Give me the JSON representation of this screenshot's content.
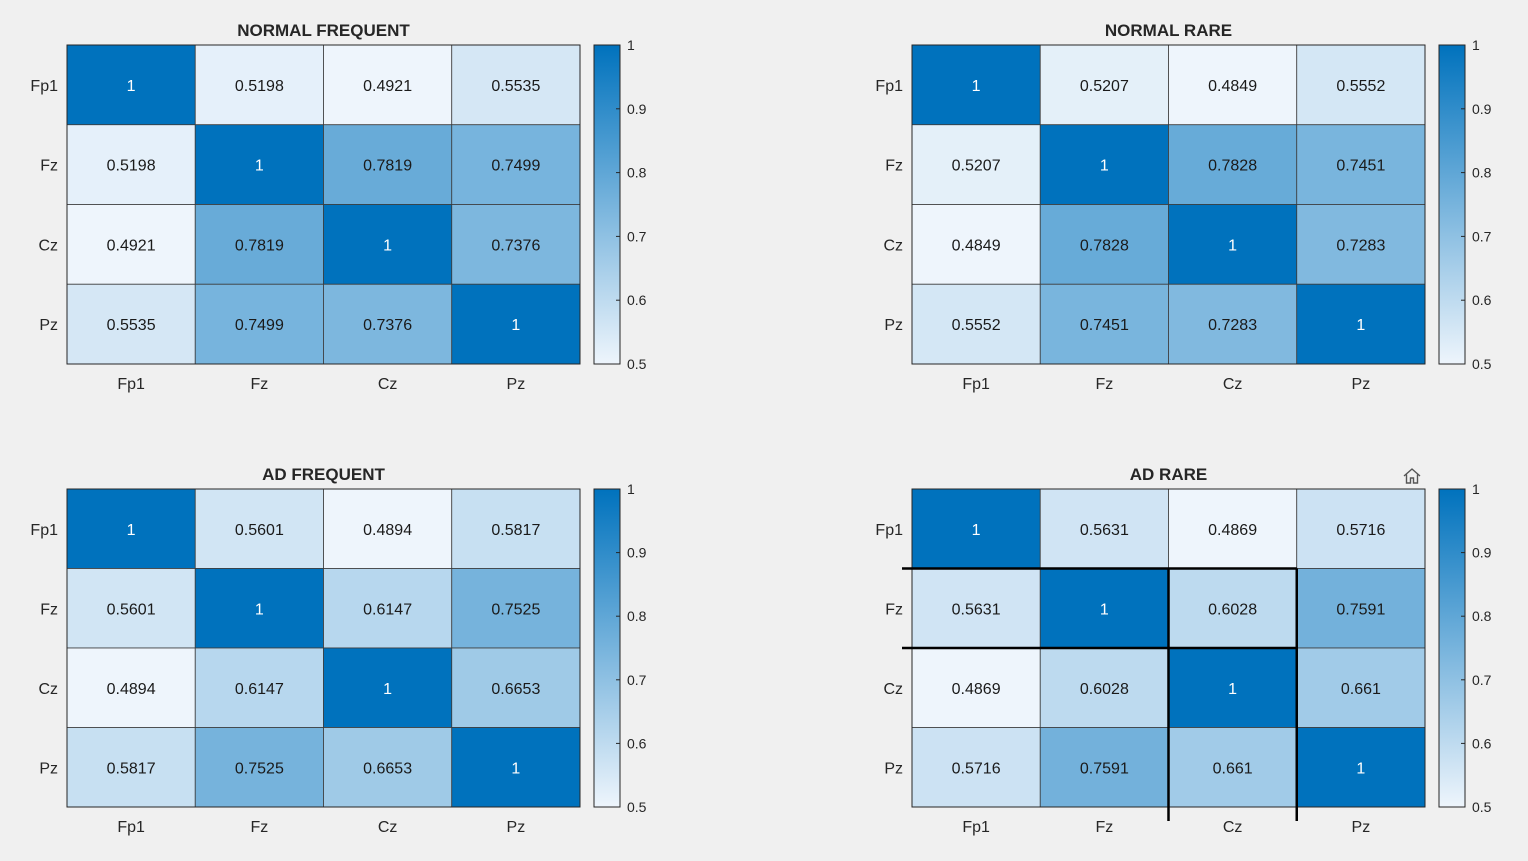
{
  "figure": {
    "background": "#f0f0f0",
    "colormap": {
      "low": "#eef5fc",
      "high": "#0072bd",
      "range": [
        0.5,
        1
      ]
    }
  },
  "toolbar": {
    "home_icon": "home-icon"
  },
  "chart_data": [
    {
      "type": "heatmap",
      "title": "NORMAL FREQUENT",
      "xlabels": [
        "Fp1",
        "Fz",
        "Cz",
        "Pz"
      ],
      "ylabels": [
        "Fp1",
        "Fz",
        "Cz",
        "Pz"
      ],
      "values": [
        [
          1,
          0.5198,
          0.4921,
          0.5535
        ],
        [
          0.5198,
          1,
          0.7819,
          0.7499
        ],
        [
          0.4921,
          0.7819,
          1,
          0.7376
        ],
        [
          0.5535,
          0.7499,
          0.7376,
          1
        ]
      ],
      "value_labels": [
        [
          "1",
          "0.5198",
          "0.4921",
          "0.5535"
        ],
        [
          "0.5198",
          "1",
          "0.7819",
          "0.7499"
        ],
        [
          "0.4921",
          "0.7819",
          "1",
          "0.7376"
        ],
        [
          "0.5535",
          "0.7499",
          "0.7376",
          "1"
        ]
      ],
      "colorbar": {
        "ticks": [
          "1",
          "0.9",
          "0.8",
          "0.7",
          "0.6",
          "0.5"
        ],
        "range": [
          0.5,
          1
        ]
      }
    },
    {
      "type": "heatmap",
      "title": "NORMAL RARE",
      "xlabels": [
        "Fp1",
        "Fz",
        "Cz",
        "Pz"
      ],
      "ylabels": [
        "Fp1",
        "Fz",
        "Cz",
        "Pz"
      ],
      "values": [
        [
          1,
          0.5207,
          0.4849,
          0.5552
        ],
        [
          0.5207,
          1,
          0.7828,
          0.7451
        ],
        [
          0.4849,
          0.7828,
          1,
          0.7283
        ],
        [
          0.5552,
          0.7451,
          0.7283,
          1
        ]
      ],
      "value_labels": [
        [
          "1",
          "0.5207",
          "0.4849",
          "0.5552"
        ],
        [
          "0.5207",
          "1",
          "0.7828",
          "0.7451"
        ],
        [
          "0.4849",
          "0.7828",
          "1",
          "0.7283"
        ],
        [
          "0.5552",
          "0.7451",
          "0.7283",
          "1"
        ]
      ],
      "colorbar": {
        "ticks": [
          "1",
          "0.9",
          "0.8",
          "0.7",
          "0.6",
          "0.5"
        ],
        "range": [
          0.5,
          1
        ]
      }
    },
    {
      "type": "heatmap",
      "title": "AD FREQUENT",
      "xlabels": [
        "Fp1",
        "Fz",
        "Cz",
        "Pz"
      ],
      "ylabels": [
        "Fp1",
        "Fz",
        "Cz",
        "Pz"
      ],
      "values": [
        [
          1,
          0.5601,
          0.4894,
          0.5817
        ],
        [
          0.5601,
          1,
          0.6147,
          0.7525
        ],
        [
          0.4894,
          0.6147,
          1,
          0.6653
        ],
        [
          0.5817,
          0.7525,
          0.6653,
          1
        ]
      ],
      "value_labels": [
        [
          "1",
          "0.5601",
          "0.4894",
          "0.5817"
        ],
        [
          "0.5601",
          "1",
          "0.6147",
          "0.7525"
        ],
        [
          "0.4894",
          "0.6147",
          "1",
          "0.6653"
        ],
        [
          "0.5817",
          "0.7525",
          "0.6653",
          "1"
        ]
      ],
      "colorbar": {
        "ticks": [
          "1",
          "0.9",
          "0.8",
          "0.7",
          "0.6",
          "0.5"
        ],
        "range": [
          0.5,
          1
        ]
      }
    },
    {
      "type": "heatmap",
      "title": "AD RARE",
      "xlabels": [
        "Fp1",
        "Fz",
        "Cz",
        "Pz"
      ],
      "ylabels": [
        "Fp1",
        "Fz",
        "Cz",
        "Pz"
      ],
      "values": [
        [
          1,
          0.5631,
          0.4869,
          0.5716
        ],
        [
          0.5631,
          1,
          0.6028,
          0.7591
        ],
        [
          0.4869,
          0.6028,
          1,
          0.661
        ],
        [
          0.5716,
          0.7591,
          0.661,
          1
        ]
      ],
      "value_labels": [
        [
          "1",
          "0.5631",
          "0.4869",
          "0.5716"
        ],
        [
          "0.5631",
          "1",
          "0.6028",
          "0.7591"
        ],
        [
          "0.4869",
          "0.6028",
          "1",
          "0.661"
        ],
        [
          "0.5716",
          "0.7591",
          "0.661",
          "1"
        ]
      ],
      "colorbar": {
        "ticks": [
          "1",
          "0.9",
          "0.8",
          "0.7",
          "0.6",
          "0.5"
        ],
        "range": [
          0.5,
          1
        ]
      },
      "highlight": {
        "rows": [
          1,
          1
        ],
        "cols": [
          2,
          3
        ]
      }
    }
  ]
}
